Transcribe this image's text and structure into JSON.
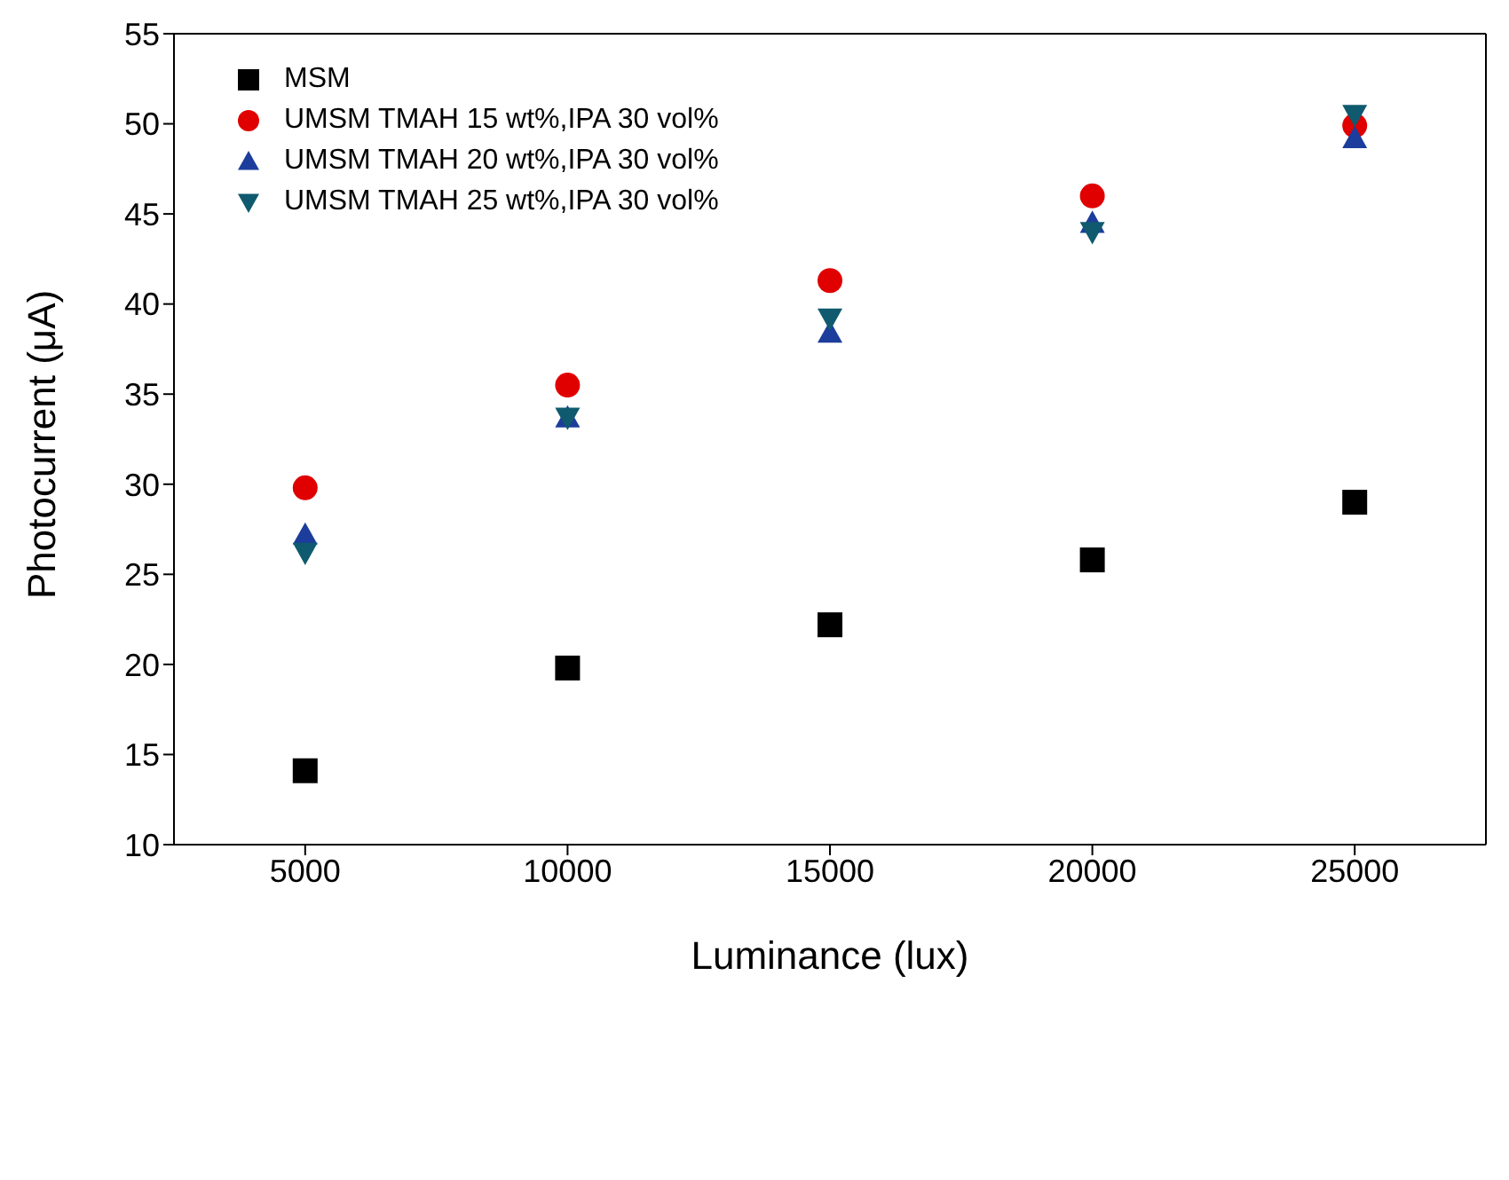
{
  "chart_data": {
    "type": "scatter",
    "xlabel": "Luminance (lux)",
    "ylabel": "Photocurrent (μA)",
    "x": [
      5000,
      10000,
      15000,
      20000,
      25000
    ],
    "xlim": [
      2500,
      27500
    ],
    "xticks": [
      5000,
      10000,
      15000,
      20000,
      25000
    ],
    "ylim": [
      10,
      55
    ],
    "yticks": [
      10,
      15,
      20,
      25,
      30,
      35,
      40,
      45,
      50,
      55
    ],
    "grid": false,
    "legend": "top left",
    "series": [
      {
        "name": "MSM",
        "color": "#000000",
        "marker": "square",
        "values": [
          14.1,
          19.8,
          22.2,
          25.8,
          29.0
        ]
      },
      {
        "name": "UMSM TMAH 15 wt%,IPA 30 vol%",
        "color": "#e00000",
        "marker": "circle",
        "values": [
          29.8,
          35.5,
          41.3,
          46.0,
          49.9
        ]
      },
      {
        "name": "UMSM TMAH 20 wt%,IPA 30 vol%",
        "color": "#1c3d9c",
        "marker": "triangle",
        "values": [
          27.2,
          33.7,
          38.4,
          44.5,
          49.2
        ]
      },
      {
        "name": "UMSM TMAH 25 wt%,IPA 30 vol%",
        "color": "#0f5a6e",
        "marker": "triangle-down",
        "values": [
          26.2,
          33.7,
          39.2,
          44.0,
          50.5
        ]
      }
    ]
  }
}
